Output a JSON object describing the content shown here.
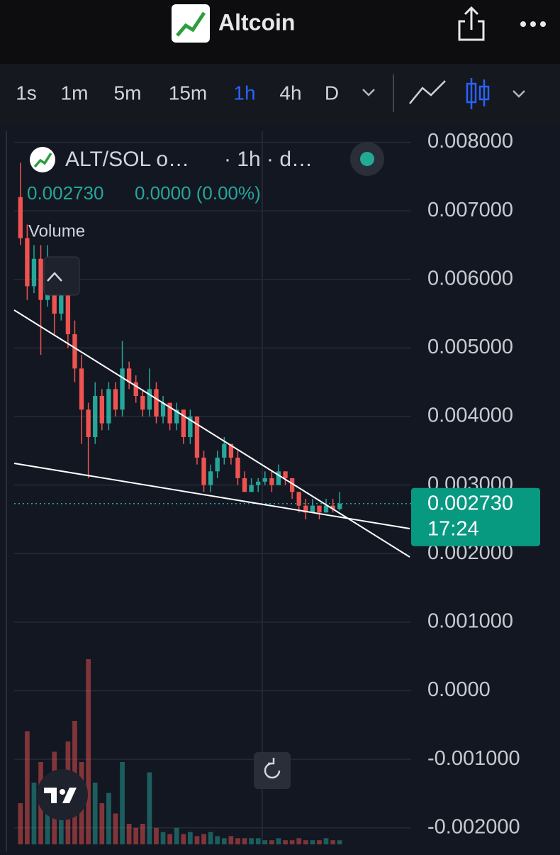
{
  "header": {
    "title": "Altcoin"
  },
  "toolbar": {
    "intervals": [
      "1s",
      "1m",
      "5m",
      "15m",
      "1h",
      "4h",
      "D"
    ],
    "active": 4
  },
  "legend": {
    "symbol": "ALT/SOL o…",
    "interval": "· 1h · d…",
    "price": "0.002730",
    "change": "0.0000 (0.00%)",
    "volume": "Volume"
  },
  "chart_data": {
    "type": "candlestick",
    "ylim": [
      -0.00224,
      0.00816
    ],
    "yticks": [
      {
        "value": 0.008,
        "label": "0.008000"
      },
      {
        "value": 0.007,
        "label": "0.007000"
      },
      {
        "value": 0.006,
        "label": "0.006000"
      },
      {
        "value": 0.005,
        "label": "0.005000"
      },
      {
        "value": 0.004,
        "label": "0.004000"
      },
      {
        "value": 0.003,
        "label": "0.003000"
      },
      {
        "value": 0.002,
        "label": "0.002000"
      },
      {
        "value": 0.001,
        "label": "0.001000"
      },
      {
        "value": 0,
        "label": "0.0000"
      },
      {
        "value": -0.001,
        "label": "-0.001000"
      },
      {
        "value": -0.002,
        "label": "-0.002000"
      }
    ],
    "grid": true,
    "up_color": "#26a69a",
    "down_color": "#ef5350",
    "ohlc": [
      [
        0.0072,
        0.0077,
        0.0065,
        0.0066
      ],
      [
        0.0066,
        0.0068,
        0.0057,
        0.0059
      ],
      [
        0.0059,
        0.0065,
        0.0058,
        0.0063
      ],
      [
        0.0063,
        0.0065,
        0.0049,
        0.0057
      ],
      [
        0.0057,
        0.0065,
        0.0056,
        0.0061
      ],
      [
        0.0061,
        0.0063,
        0.0052,
        0.0055
      ],
      [
        0.0055,
        0.006,
        0.0054,
        0.0058
      ],
      [
        0.0058,
        0.0058,
        0.005,
        0.0052
      ],
      [
        0.0052,
        0.0054,
        0.0045,
        0.0047
      ],
      [
        0.0047,
        0.0049,
        0.0036,
        0.0041
      ],
      [
        0.0041,
        0.0042,
        0.0031,
        0.0037
      ],
      [
        0.0037,
        0.0045,
        0.0036,
        0.0043
      ],
      [
        0.0043,
        0.0044,
        0.0038,
        0.0039
      ],
      [
        0.0039,
        0.0045,
        0.0038,
        0.0044
      ],
      [
        0.0044,
        0.0045,
        0.004,
        0.0041
      ],
      [
        0.0041,
        0.0051,
        0.004,
        0.0047
      ],
      [
        0.0047,
        0.0048,
        0.0044,
        0.0045
      ],
      [
        0.0045,
        0.0046,
        0.0042,
        0.0043
      ],
      [
        0.0043,
        0.0044,
        0.004,
        0.0041
      ],
      [
        0.0041,
        0.0047,
        0.004,
        0.0044
      ],
      [
        0.0044,
        0.0045,
        0.0039,
        0.004
      ],
      [
        0.004,
        0.0043,
        0.0039,
        0.0042
      ],
      [
        0.0042,
        0.0042,
        0.0038,
        0.0039
      ],
      [
        0.0039,
        0.0042,
        0.0038,
        0.0041
      ],
      [
        0.0041,
        0.0041,
        0.0036,
        0.0037
      ],
      [
        0.0037,
        0.0041,
        0.0036,
        0.004
      ],
      [
        0.004,
        0.004,
        0.0033,
        0.0034
      ],
      [
        0.0034,
        0.0035,
        0.0029,
        0.003
      ],
      [
        0.003,
        0.0033,
        0.0029,
        0.0032
      ],
      [
        0.0032,
        0.0035,
        0.0031,
        0.0034
      ],
      [
        0.0034,
        0.0037,
        0.0033,
        0.0036
      ],
      [
        0.0036,
        0.0036,
        0.0033,
        0.0034
      ],
      [
        0.0034,
        0.0035,
        0.003,
        0.0031
      ],
      [
        0.0031,
        0.0032,
        0.0029,
        0.0029
      ],
      [
        0.0029,
        0.0031,
        0.0029,
        0.003
      ],
      [
        0.003,
        0.0031,
        0.0029,
        0.00305
      ],
      [
        0.00305,
        0.0032,
        0.003,
        0.0031
      ],
      [
        0.0031,
        0.0032,
        0.0029,
        0.003
      ],
      [
        0.003,
        0.0033,
        0.003,
        0.0032
      ],
      [
        0.0032,
        0.0032,
        0.003,
        0.0031
      ],
      [
        0.0031,
        0.0031,
        0.0028,
        0.0029
      ],
      [
        0.0029,
        0.0029,
        0.0026,
        0.0027
      ],
      [
        0.0027,
        0.0028,
        0.0025,
        0.0026
      ],
      [
        0.0026,
        0.0028,
        0.0026,
        0.0027
      ],
      [
        0.0027,
        0.0027,
        0.0025,
        0.0026
      ],
      [
        0.0026,
        0.0028,
        0.0026,
        0.0027
      ],
      [
        0.0027,
        0.0028,
        0.0026,
        0.00265
      ],
      [
        0.00265,
        0.0029,
        0.00263,
        0.00273
      ]
    ],
    "volume": [
      20,
      55,
      30,
      40,
      25,
      45,
      35,
      50,
      60,
      40,
      90,
      30,
      20,
      25,
      15,
      40,
      10,
      8,
      10,
      35,
      8,
      6,
      5,
      8,
      5,
      6,
      4,
      5,
      6,
      4,
      3,
      4,
      3,
      3,
      3,
      3,
      2,
      2,
      3,
      2,
      2,
      3,
      2,
      2,
      2,
      3,
      2,
      2
    ],
    "vlim": [
      0,
      100
    ],
    "last_price": {
      "value": 0.00273,
      "label": "0.002730"
    },
    "countdown": "17:24"
  }
}
